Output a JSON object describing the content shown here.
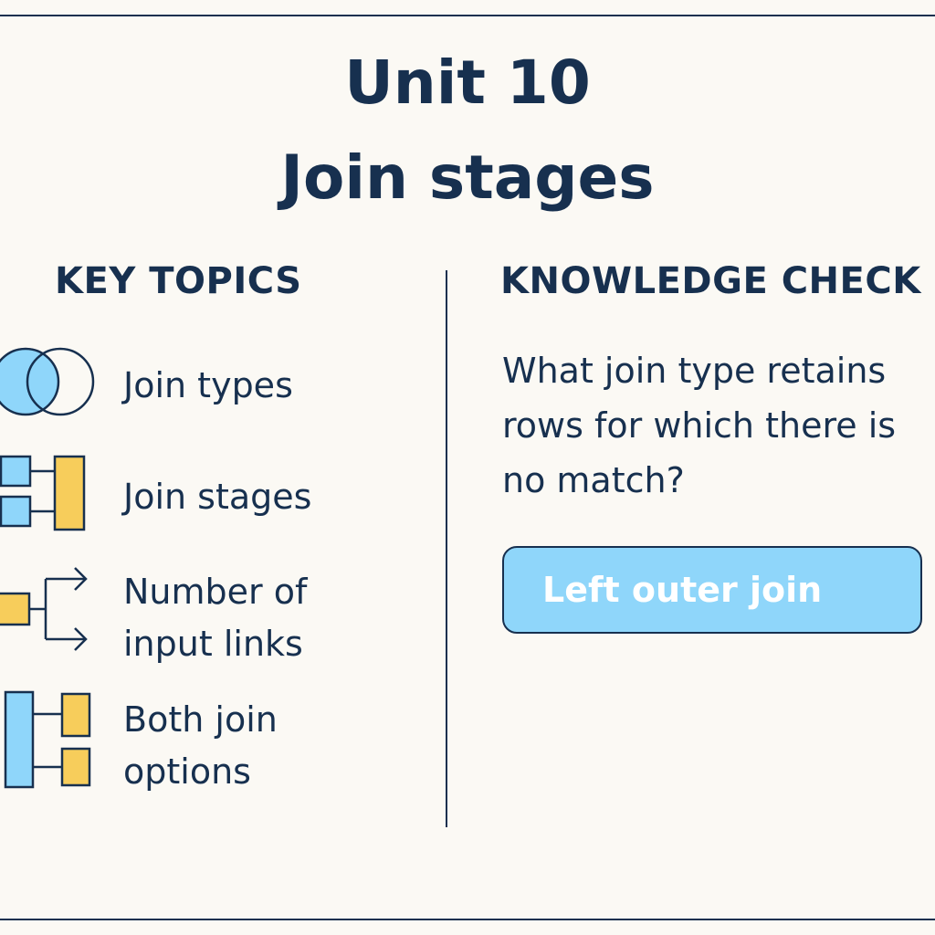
{
  "title": {
    "line1": "Unit 10",
    "line2": "Join stages"
  },
  "key_topics": {
    "heading": "KEY TOPICS",
    "items": [
      {
        "icon": "venn-diagram-icon",
        "lines": [
          "Join types"
        ]
      },
      {
        "icon": "join-stage-diagram-icon",
        "lines": [
          "Join stages"
        ]
      },
      {
        "icon": "branching-links-icon",
        "lines": [
          "Number of",
          "input links"
        ]
      },
      {
        "icon": "both-join-options-icon",
        "lines": [
          "Both join",
          "options"
        ]
      }
    ]
  },
  "knowledge_check": {
    "heading": "KNOWLEDGE CHECK",
    "question": "What join type retains rows for which there is no match?",
    "answer": "Left outer join"
  },
  "colors": {
    "background": "#fbf9f4",
    "ink": "#17304f",
    "accent_blue": "#8fd6fa",
    "accent_yellow": "#f7cd5b",
    "answer_text": "#ffffff"
  }
}
